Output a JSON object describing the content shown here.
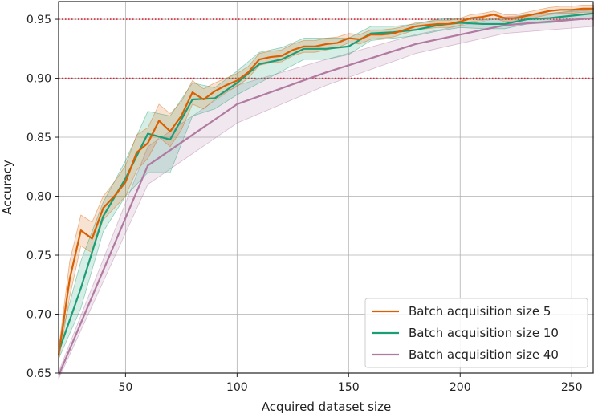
{
  "chart_data": {
    "type": "line",
    "title": "",
    "xlabel": "Acquired dataset size",
    "ylabel": "Accuracy",
    "xlim": [
      20,
      260
    ],
    "ylim": [
      0.65,
      0.965
    ],
    "xticks": [
      50,
      100,
      150,
      200,
      250
    ],
    "yticks": [
      0.65,
      0.7,
      0.75,
      0.8,
      0.85,
      0.9,
      0.95
    ],
    "xtick_labels": [
      "50",
      "100",
      "150",
      "200",
      "250"
    ],
    "ytick_labels": [
      "0.65",
      "0.70",
      "0.75",
      "0.80",
      "0.85",
      "0.90",
      "0.95"
    ],
    "grid": true,
    "legend_position": "bottom-right",
    "reference_lines": [
      {
        "y": 0.95,
        "color": "#e0202f",
        "style": "dotted"
      },
      {
        "y": 0.9,
        "color": "#e0202f",
        "style": "dotted"
      }
    ],
    "series": [
      {
        "name": "Batch acquisition size 5",
        "color": "#d95f02",
        "x": [
          20,
          25,
          30,
          35,
          40,
          45,
          50,
          55,
          60,
          65,
          70,
          75,
          80,
          85,
          90,
          95,
          100,
          105,
          110,
          115,
          120,
          125,
          130,
          135,
          140,
          145,
          150,
          155,
          160,
          165,
          170,
          175,
          180,
          185,
          190,
          195,
          200,
          205,
          210,
          215,
          220,
          225,
          230,
          235,
          240,
          245,
          250,
          255,
          260
        ],
        "y": [
          0.665,
          0.73,
          0.771,
          0.764,
          0.79,
          0.8,
          0.812,
          0.837,
          0.845,
          0.864,
          0.855,
          0.868,
          0.888,
          0.882,
          0.889,
          0.894,
          0.898,
          0.905,
          0.916,
          0.918,
          0.919,
          0.924,
          0.927,
          0.927,
          0.929,
          0.93,
          0.934,
          0.933,
          0.937,
          0.937,
          0.938,
          0.941,
          0.944,
          0.945,
          0.946,
          0.946,
          0.948,
          0.951,
          0.952,
          0.954,
          0.951,
          0.951,
          0.953,
          0.955,
          0.957,
          0.958,
          0.958,
          0.959,
          0.959
        ],
        "lower": [
          0.66,
          0.715,
          0.758,
          0.752,
          0.78,
          0.79,
          0.8,
          0.822,
          0.832,
          0.85,
          0.842,
          0.856,
          0.878,
          0.874,
          0.882,
          0.888,
          0.893,
          0.9,
          0.911,
          0.913,
          0.914,
          0.919,
          0.922,
          0.922,
          0.924,
          0.926,
          0.93,
          0.929,
          0.933,
          0.934,
          0.935,
          0.938,
          0.941,
          0.942,
          0.943,
          0.943,
          0.945,
          0.948,
          0.949,
          0.951,
          0.948,
          0.948,
          0.95,
          0.952,
          0.954,
          0.955,
          0.955,
          0.956,
          0.956
        ],
        "upper": [
          0.67,
          0.745,
          0.784,
          0.778,
          0.8,
          0.812,
          0.826,
          0.852,
          0.858,
          0.878,
          0.87,
          0.88,
          0.898,
          0.891,
          0.896,
          0.9,
          0.904,
          0.91,
          0.921,
          0.923,
          0.924,
          0.929,
          0.932,
          0.932,
          0.934,
          0.935,
          0.938,
          0.937,
          0.941,
          0.941,
          0.942,
          0.944,
          0.947,
          0.948,
          0.949,
          0.949,
          0.951,
          0.954,
          0.955,
          0.957,
          0.954,
          0.954,
          0.956,
          0.958,
          0.96,
          0.961,
          0.961,
          0.962,
          0.962
        ]
      },
      {
        "name": "Batch acquisition size 10",
        "color": "#1b9e77",
        "x": [
          20,
          30,
          40,
          50,
          60,
          70,
          80,
          90,
          100,
          110,
          120,
          130,
          140,
          150,
          160,
          170,
          180,
          190,
          200,
          210,
          220,
          230,
          240,
          250,
          260
        ],
        "y": [
          0.668,
          0.722,
          0.783,
          0.815,
          0.853,
          0.848,
          0.882,
          0.883,
          0.896,
          0.912,
          0.916,
          0.925,
          0.925,
          0.927,
          0.938,
          0.939,
          0.941,
          0.945,
          0.947,
          0.946,
          0.946,
          0.95,
          0.951,
          0.953,
          0.955
        ],
        "lower": [
          0.662,
          0.705,
          0.77,
          0.8,
          0.82,
          0.82,
          0.868,
          0.874,
          0.886,
          0.896,
          0.906,
          0.916,
          0.916,
          0.92,
          0.932,
          0.934,
          0.936,
          0.94,
          0.943,
          0.942,
          0.942,
          0.946,
          0.947,
          0.949,
          0.951
        ],
        "upper": [
          0.674,
          0.745,
          0.795,
          0.83,
          0.872,
          0.868,
          0.896,
          0.892,
          0.906,
          0.922,
          0.926,
          0.934,
          0.934,
          0.934,
          0.944,
          0.944,
          0.946,
          0.95,
          0.951,
          0.95,
          0.95,
          0.954,
          0.955,
          0.957,
          0.959
        ]
      },
      {
        "name": "Batch acquisition size 40",
        "color": "#b07aa1",
        "x": [
          20,
          60,
          100,
          140,
          180,
          220,
          260
        ],
        "y": [
          0.648,
          0.826,
          0.878,
          0.905,
          0.929,
          0.945,
          0.951
        ],
        "lower": [
          0.645,
          0.81,
          0.862,
          0.894,
          0.921,
          0.938,
          0.944
        ],
        "upper": [
          0.651,
          0.842,
          0.894,
          0.916,
          0.937,
          0.952,
          0.958
        ]
      }
    ]
  }
}
